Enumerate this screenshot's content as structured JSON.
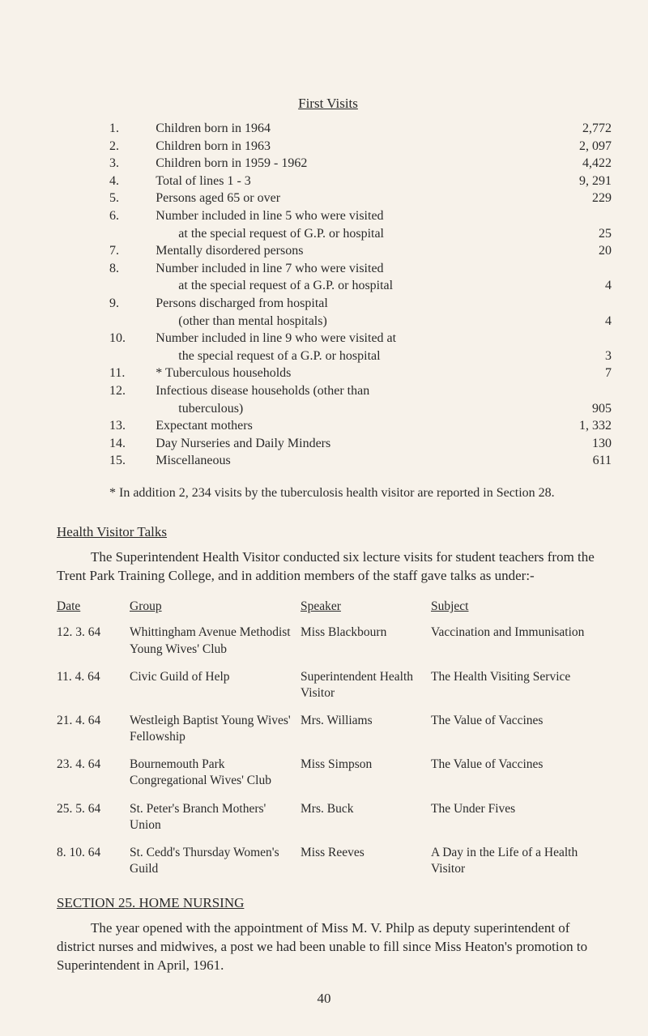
{
  "first_visits": {
    "title": "First Visits",
    "rows": [
      {
        "n": "1.",
        "desc": "Children born in 1964",
        "val": "2,772"
      },
      {
        "n": "2.",
        "desc": "Children born in 1963",
        "val": "2, 097"
      },
      {
        "n": "3.",
        "desc": "Children born in 1959 - 1962",
        "val": "4,422"
      },
      {
        "n": "4.",
        "desc": "Total of lines 1 - 3",
        "val": "9, 291"
      },
      {
        "n": "5.",
        "desc": "Persons aged 65 or over",
        "val": "229"
      },
      {
        "n": "6.",
        "desc": "Number included in line 5 who were visited",
        "cont": "at the special request of G.P. or hospital",
        "val": "25"
      },
      {
        "n": "7.",
        "desc": "Mentally disordered persons",
        "val": "20"
      },
      {
        "n": "8.",
        "desc": "Number included in line 7 who were visited",
        "cont": "at the special request of a G.P. or hospital",
        "val": "4"
      },
      {
        "n": "9.",
        "desc": "Persons discharged from hospital",
        "cont": "(other than mental hospitals)",
        "val": "4"
      },
      {
        "n": "10.",
        "desc": "Number included in line 9 who were visited at",
        "cont": "the special request of a G.P. or hospital",
        "val": "3"
      },
      {
        "n": "11.",
        "desc": "* Tuberculous households",
        "val": "7"
      },
      {
        "n": "12.",
        "desc": "Infectious disease households (other than",
        "cont": "tuberculous)",
        "val": "905"
      },
      {
        "n": "13.",
        "desc": "Expectant mothers",
        "val": "1, 332"
      },
      {
        "n": "14.",
        "desc": "Day Nurseries and Daily Minders",
        "val": "130"
      },
      {
        "n": "15.",
        "desc": "Miscellaneous",
        "val": "611"
      }
    ],
    "footnote": "*    In addition 2, 234 visits by the tuberculosis health visitor are reported in Section 28."
  },
  "talks": {
    "heading": "Health Visitor Talks",
    "intro": "The Superintendent Health Visitor conducted six lecture visits for student teachers from the Trent Park Training College, and in addition members of the staff gave talks as under:-",
    "headers": {
      "date": "Date",
      "group": "Group",
      "speaker": "Speaker",
      "subject": "Subject"
    },
    "rows": [
      {
        "date": "12.  3. 64",
        "group": "Whittingham Avenue Methodist Young Wives' Club",
        "speaker": "Miss Blackbourn",
        "subject": "Vaccination and Immunisation"
      },
      {
        "date": "11.  4. 64",
        "group": "Civic Guild of Help",
        "speaker": "Superintendent Health Visitor",
        "subject": "The Health Visiting Service"
      },
      {
        "date": "21.  4. 64",
        "group": "Westleigh Baptist Young Wives' Fellowship",
        "speaker": "Mrs. Williams",
        "subject": "The Value of Vaccines"
      },
      {
        "date": "23.  4. 64",
        "group": "Bournemouth Park Congregational Wives' Club",
        "speaker": "Miss Simpson",
        "subject": "The Value of Vaccines"
      },
      {
        "date": "25.  5. 64",
        "group": "St. Peter's Branch Mothers' Union",
        "speaker": "Mrs. Buck",
        "subject": "The Under Fives"
      },
      {
        "date": "8. 10. 64",
        "group": "St. Cedd's Thursday Women's Guild",
        "speaker": "Miss Reeves",
        "subject": "A Day in the Life of a Health Visitor"
      }
    ]
  },
  "section25": {
    "heading": "SECTION 25.  HOME NURSING",
    "para": "The year opened with the appointment of Miss M. V. Philp as deputy superintendent of district nurses and midwives, a post we had been unable to fill since Miss Heaton's promotion to Superintendent in April, 1961."
  },
  "page_number": "40"
}
